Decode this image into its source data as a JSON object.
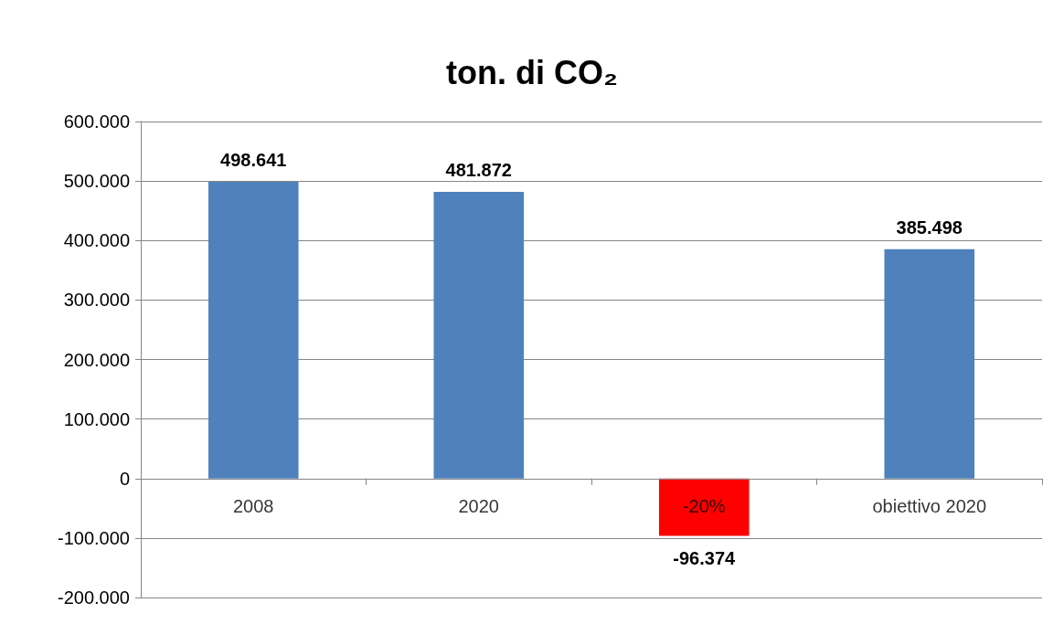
{
  "chart_data": {
    "type": "bar",
    "title": "ton. di CO₂",
    "categories": [
      "2008",
      "2020",
      "-20%",
      "obiettivo 2020"
    ],
    "values": [
      498641,
      481872,
      -96374,
      385498
    ],
    "colors": [
      "#4f81bd",
      "#4f81bd",
      "#ff0000",
      "#4f81bd"
    ],
    "value_labels": [
      "498.641",
      "481.872",
      "-96.374",
      "385.498"
    ],
    "ylim": [
      -200000,
      600000
    ],
    "yticks": [
      {
        "value": -200000,
        "label": "-200.000"
      },
      {
        "value": -100000,
        "label": "-100.000"
      },
      0,
      {
        "value": 100000,
        "label": "100.000"
      },
      {
        "value": 200000,
        "label": "200.000"
      },
      {
        "value": 300000,
        "label": "300.000"
      },
      {
        "value": 400000,
        "label": "400.000"
      },
      {
        "value": 500000,
        "label": "500.000"
      },
      {
        "value": 600000,
        "label": "600.000"
      }
    ],
    "grid": "y"
  }
}
